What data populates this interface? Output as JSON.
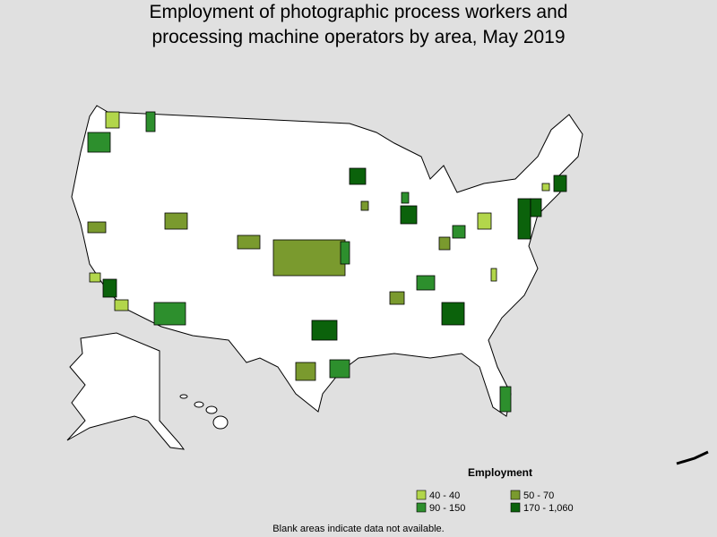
{
  "title": [
    "Employment of photographic process workers and",
    "processing machine operators by area, May 2019"
  ],
  "legend": {
    "title": "Employment",
    "items": [
      {
        "label": "40 - 40",
        "color": "#b2d64b"
      },
      {
        "label": "50 - 70",
        "color": "#7a9a2e"
      },
      {
        "label": "90 - 150",
        "color": "#2d8f2d"
      },
      {
        "label": "170 - 1,060",
        "color": "#0b620b"
      }
    ]
  },
  "footnote": "Blank areas indicate data not available."
}
